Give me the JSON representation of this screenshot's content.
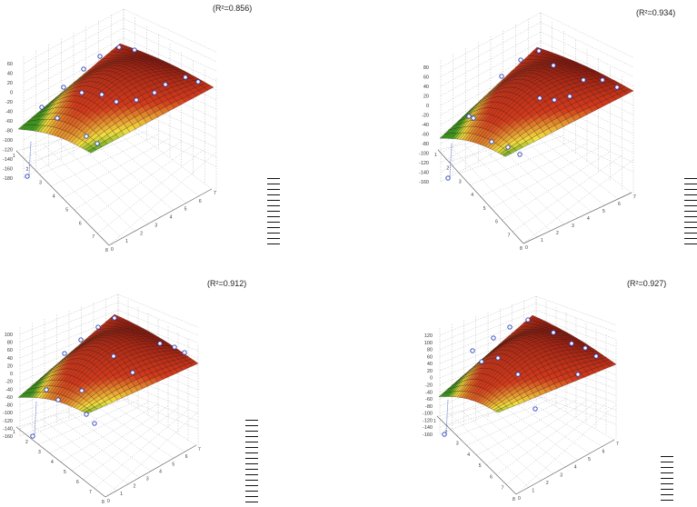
{
  "charts": [
    {
      "r2": "(R²=0.856)",
      "zticks": [
        "60",
        "40",
        "20",
        "0",
        "-20",
        "-40",
        "-60",
        "-80",
        "-100",
        "-120",
        "-140",
        "-160",
        "-180"
      ],
      "xticks": [
        "0",
        "1",
        "2",
        "3",
        "4",
        "5",
        "6",
        "7"
      ],
      "yticks": [
        "1",
        "2",
        "3",
        "4",
        "5",
        "6",
        "7",
        "8"
      ]
    },
    {
      "r2": "(R²=0.934)",
      "zticks": [
        "80",
        "60",
        "40",
        "20",
        "0",
        "-20",
        "-40",
        "-60",
        "-80",
        "-100",
        "-120",
        "-140",
        "-160"
      ],
      "xticks": [
        "0",
        "1",
        "2",
        "3",
        "4",
        "5",
        "6",
        "7"
      ],
      "yticks": [
        "1",
        "2",
        "3",
        "4",
        "5",
        "6",
        "7",
        "8"
      ]
    },
    {
      "r2": "(R²=0.912)",
      "zticks": [
        "100",
        "80",
        "60",
        "40",
        "20",
        "0",
        "-20",
        "-40",
        "-60",
        "-80",
        "-100",
        "-120",
        "-140",
        "-160"
      ],
      "xticks": [
        "0",
        "1",
        "2",
        "3",
        "4",
        "5",
        "6",
        "7"
      ],
      "yticks": [
        "1",
        "2",
        "3",
        "4",
        "5",
        "6",
        "7",
        "8"
      ]
    },
    {
      "r2": "(R²=0.927)",
      "zticks": [
        "120",
        "100",
        "80",
        "60",
        "40",
        "20",
        "0",
        "-20",
        "-40",
        "-60",
        "-80",
        "-100",
        "-120",
        "-140",
        "-160"
      ],
      "xticks": [
        "0",
        "1",
        "2",
        "3",
        "4",
        "5",
        "6",
        "7"
      ],
      "yticks": [
        "1",
        "2",
        "3",
        "4",
        "5",
        "6",
        "7",
        "8"
      ]
    }
  ],
  "chart_data": [
    {
      "type": "surface",
      "r2_label": "(R²=0.856)",
      "zlim": [
        -180,
        60
      ],
      "xlim": [
        0,
        7
      ],
      "ylim": [
        1,
        8
      ],
      "grid": true,
      "legend": "right, unlabeled"
    },
    {
      "type": "surface",
      "r2_label": "(R²=0.934)",
      "zlim": [
        -160,
        80
      ],
      "xlim": [
        0,
        7
      ],
      "ylim": [
        1,
        8
      ],
      "grid": true,
      "legend": "right, unlabeled"
    },
    {
      "type": "surface",
      "r2_label": "(R²=0.912)",
      "zlim": [
        -160,
        100
      ],
      "xlim": [
        0,
        7
      ],
      "ylim": [
        1,
        8
      ],
      "grid": true,
      "legend": "right, unlabeled"
    },
    {
      "type": "surface",
      "r2_label": "(R²=0.927)",
      "zlim": [
        -160,
        120
      ],
      "xlim": [
        0,
        7
      ],
      "ylim": [
        1,
        8
      ],
      "grid": true,
      "legend": "right, unlabeled"
    }
  ],
  "colors": {
    "surface_high": "#8b1a10",
    "surface_mid": "#d23a1c",
    "surface_low": "#f2e040",
    "surface_min": "#3aa020",
    "point": "#2a3fb8",
    "grid": "#bdbdbd"
  }
}
